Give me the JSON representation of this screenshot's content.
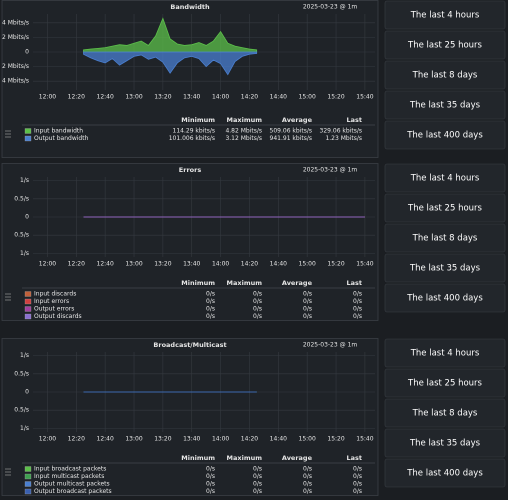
{
  "panels": [
    {
      "title": "Bandwidth",
      "timestamp": "2025-03-23 @ 1m",
      "chart_data": {
        "type": "area",
        "xlim": [
          "11:50",
          "15:47"
        ],
        "xticks": [
          "12:00",
          "12:20",
          "12:40",
          "13:00",
          "13:20",
          "13:40",
          "14:00",
          "14:20",
          "14:40",
          "15:00",
          "15:20",
          "15:40"
        ],
        "ylim": [
          -5.2,
          5.2
        ],
        "yticks": [
          {
            "value": 4,
            "label": "4 Mbits/s"
          },
          {
            "value": 2,
            "label": "2 Mbits/s"
          },
          0,
          {
            "value": -2,
            "label": "2 Mbits/s"
          },
          {
            "value": -4,
            "label": "4 Mbits/s"
          }
        ],
        "grid": true,
        "columns": [
          "Minimum",
          "Maximum",
          "Average",
          "Last"
        ],
        "series": [
          {
            "name": "Input bandwidth",
            "color": "#5cc04a",
            "x": [
              "12:25",
              "12:30",
              "12:35",
              "12:40",
              "12:45",
              "12:50",
              "12:55",
              "13:00",
              "13:05",
              "13:10",
              "13:15",
              "13:20",
              "13:25",
              "13:30",
              "13:35",
              "13:40",
              "13:45",
              "13:50",
              "13:55",
              "14:00",
              "14:05",
              "14:10",
              "14:15",
              "14:20",
              "14:25"
            ],
            "values": [
              0.3,
              0.4,
              0.5,
              0.6,
              0.8,
              1.0,
              0.9,
              1.2,
              1.5,
              0.9,
              2.2,
              4.6,
              1.8,
              1.1,
              0.9,
              1.0,
              1.3,
              0.9,
              1.5,
              2.8,
              1.2,
              0.8,
              0.6,
              0.4,
              0.3
            ],
            "stats": [
              "114.29 kbits/s",
              "4.82 Mbits/s",
              "509.06 kbits/s",
              "329.06 kbits/s"
            ]
          },
          {
            "name": "Output bandwidth",
            "color": "#4a7fd0",
            "x": [
              "12:25",
              "12:30",
              "12:35",
              "12:40",
              "12:45",
              "12:50",
              "12:55",
              "13:00",
              "13:05",
              "13:10",
              "13:15",
              "13:20",
              "13:25",
              "13:30",
              "13:35",
              "13:40",
              "13:45",
              "13:50",
              "13:55",
              "14:00",
              "14:05",
              "14:10",
              "14:15",
              "14:20",
              "14:25"
            ],
            "values": [
              -0.3,
              -0.8,
              -1.2,
              -1.5,
              -0.9,
              -1.8,
              -1.2,
              -0.6,
              -0.4,
              -1.0,
              -0.7,
              -1.4,
              -2.9,
              -1.5,
              -0.8,
              -0.6,
              -0.9,
              -2.0,
              -1.1,
              -1.6,
              -3.1,
              -1.3,
              -0.6,
              -0.3,
              -0.2
            ],
            "stats": [
              "101.006 kbits/s",
              "3.12 Mbits/s",
              "941.91 kbits/s",
              "1.23 Mbits/s"
            ]
          }
        ]
      },
      "buttons": [
        "The last 4 hours",
        "The last 25 hours",
        "The last 8 days",
        "The last 35 days",
        "The last 400 days"
      ]
    },
    {
      "title": "Errors",
      "timestamp": "2025-03-23 @ 1m",
      "chart_data": {
        "type": "line",
        "xlim": [
          "11:50",
          "15:47"
        ],
        "xticks": [
          "12:00",
          "12:20",
          "12:40",
          "13:00",
          "13:20",
          "13:40",
          "14:00",
          "14:20",
          "14:40",
          "15:00",
          "15:20",
          "15:40"
        ],
        "ylim": [
          -1.1,
          1.1
        ],
        "yticks": [
          {
            "value": 1,
            "label": "1/s"
          },
          {
            "value": 0.5,
            "label": "0.5/s"
          },
          0,
          {
            "value": -0.5,
            "label": "0.5/s"
          },
          {
            "value": -1,
            "label": "1/s"
          }
        ],
        "grid": true,
        "columns": [
          "Minimum",
          "Maximum",
          "Average",
          "Last"
        ],
        "series": [
          {
            "name": "Input discards",
            "color": "#c0603a",
            "x": [
              "12:25",
              "15:40"
            ],
            "values": [
              0,
              0
            ],
            "stats": [
              "0/s",
              "0/s",
              "0/s",
              "0/s"
            ]
          },
          {
            "name": "Input errors",
            "color": "#d04040",
            "x": [
              "12:25",
              "15:40"
            ],
            "values": [
              0,
              0
            ],
            "stats": [
              "0/s",
              "0/s",
              "0/s",
              "0/s"
            ]
          },
          {
            "name": "Output errors",
            "color": "#a040a0",
            "x": [
              "12:25",
              "15:40"
            ],
            "values": [
              0,
              0
            ],
            "stats": [
              "0/s",
              "0/s",
              "0/s",
              "0/s"
            ]
          },
          {
            "name": "Output discards",
            "color": "#8a70d0",
            "x": [
              "12:25",
              "15:40"
            ],
            "values": [
              0,
              0
            ],
            "stats": [
              "0/s",
              "0/s",
              "0/s",
              "0/s"
            ]
          }
        ]
      },
      "buttons": [
        "The last 4 hours",
        "The last 25 hours",
        "The last 8 days",
        "The last 35 days",
        "The last 400 days"
      ]
    },
    {
      "title": "Broadcast/Multicast",
      "timestamp": "2025-03-23 @ 1m",
      "chart_data": {
        "type": "line",
        "xlim": [
          "11:50",
          "15:47"
        ],
        "xticks": [
          "12:00",
          "12:20",
          "12:40",
          "13:00",
          "13:20",
          "13:40",
          "14:00",
          "14:20",
          "14:40",
          "15:00",
          "15:20",
          "15:40"
        ],
        "ylim": [
          -1.1,
          1.1
        ],
        "yticks": [
          {
            "value": 1,
            "label": "1/s"
          },
          {
            "value": 0.5,
            "label": "0.5/s"
          },
          0,
          {
            "value": -0.5,
            "label": "0.5/s"
          },
          {
            "value": -1,
            "label": "1/s"
          }
        ],
        "grid": true,
        "columns": [
          "Minimum",
          "Maximum",
          "Average",
          "Last"
        ],
        "series": [
          {
            "name": "Input broadcast packets",
            "color": "#5cc04a",
            "x": [
              "12:25",
              "14:25"
            ],
            "values": [
              0,
              0
            ],
            "stats": [
              "0/s",
              "0/s",
              "0/s",
              "0/s"
            ]
          },
          {
            "name": "Input multicast packets",
            "color": "#3fa050",
            "x": [
              "12:25",
              "14:25"
            ],
            "values": [
              0,
              0
            ],
            "stats": [
              "0/s",
              "0/s",
              "0/s",
              "0/s"
            ]
          },
          {
            "name": "Output multicast packets",
            "color": "#4a7fd0",
            "x": [
              "12:25",
              "14:25"
            ],
            "values": [
              0,
              0
            ],
            "stats": [
              "0/s",
              "0/s",
              "0/s",
              "0/s"
            ]
          },
          {
            "name": "Output broadcast packets",
            "color": "#3a60b0",
            "x": [
              "12:25",
              "14:25"
            ],
            "values": [
              0,
              0
            ],
            "stats": [
              "0/s",
              "0/s",
              "0/s",
              "0/s"
            ]
          }
        ]
      },
      "buttons": [
        "The last 4 hours",
        "The last 25 hours",
        "The last 8 days",
        "The last 35 days",
        "The last 400 days"
      ]
    }
  ]
}
